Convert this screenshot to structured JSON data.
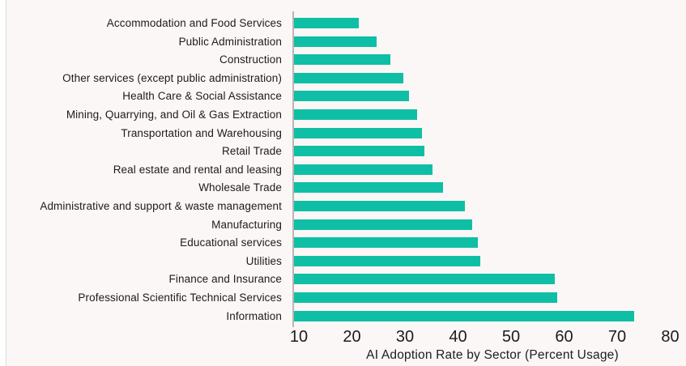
{
  "chart_data": {
    "type": "bar",
    "orientation": "horizontal",
    "title": "",
    "xlabel": "AI Adoption Rate by Sector (Percent Usage)",
    "ylabel": "",
    "categories": [
      "Accommodation and Food Services",
      "Public Administration",
      "Construction",
      "Other services (except public administration)",
      "Health Care & Social Assistance",
      "Mining, Quarrying, and Oil & Gas Extraction",
      "Transportation and Warehousing",
      "Retail Trade",
      "Real estate and rental and leasing",
      "Wholesale Trade",
      "Administrative and support & waste management",
      "Manufacturing",
      "Educational services",
      "Utilities",
      "Finance and Insurance",
      "Professional Scientific Technical Services",
      "Information"
    ],
    "values": [
      21,
      24.5,
      27,
      29.5,
      30.5,
      32,
      33,
      33.5,
      35,
      37,
      41,
      42.5,
      43.5,
      44,
      58,
      58.5,
      73
    ],
    "xticks": [
      10,
      20,
      30,
      40,
      50,
      60,
      70,
      80
    ],
    "xlim": [
      8.8,
      83
    ],
    "grid": false,
    "legend": false,
    "bar_color": "#0fbfa5",
    "background_color": "#fbf7f6",
    "axis_line_color": "#b9b6b4",
    "text_color": "#1c1c1c"
  }
}
